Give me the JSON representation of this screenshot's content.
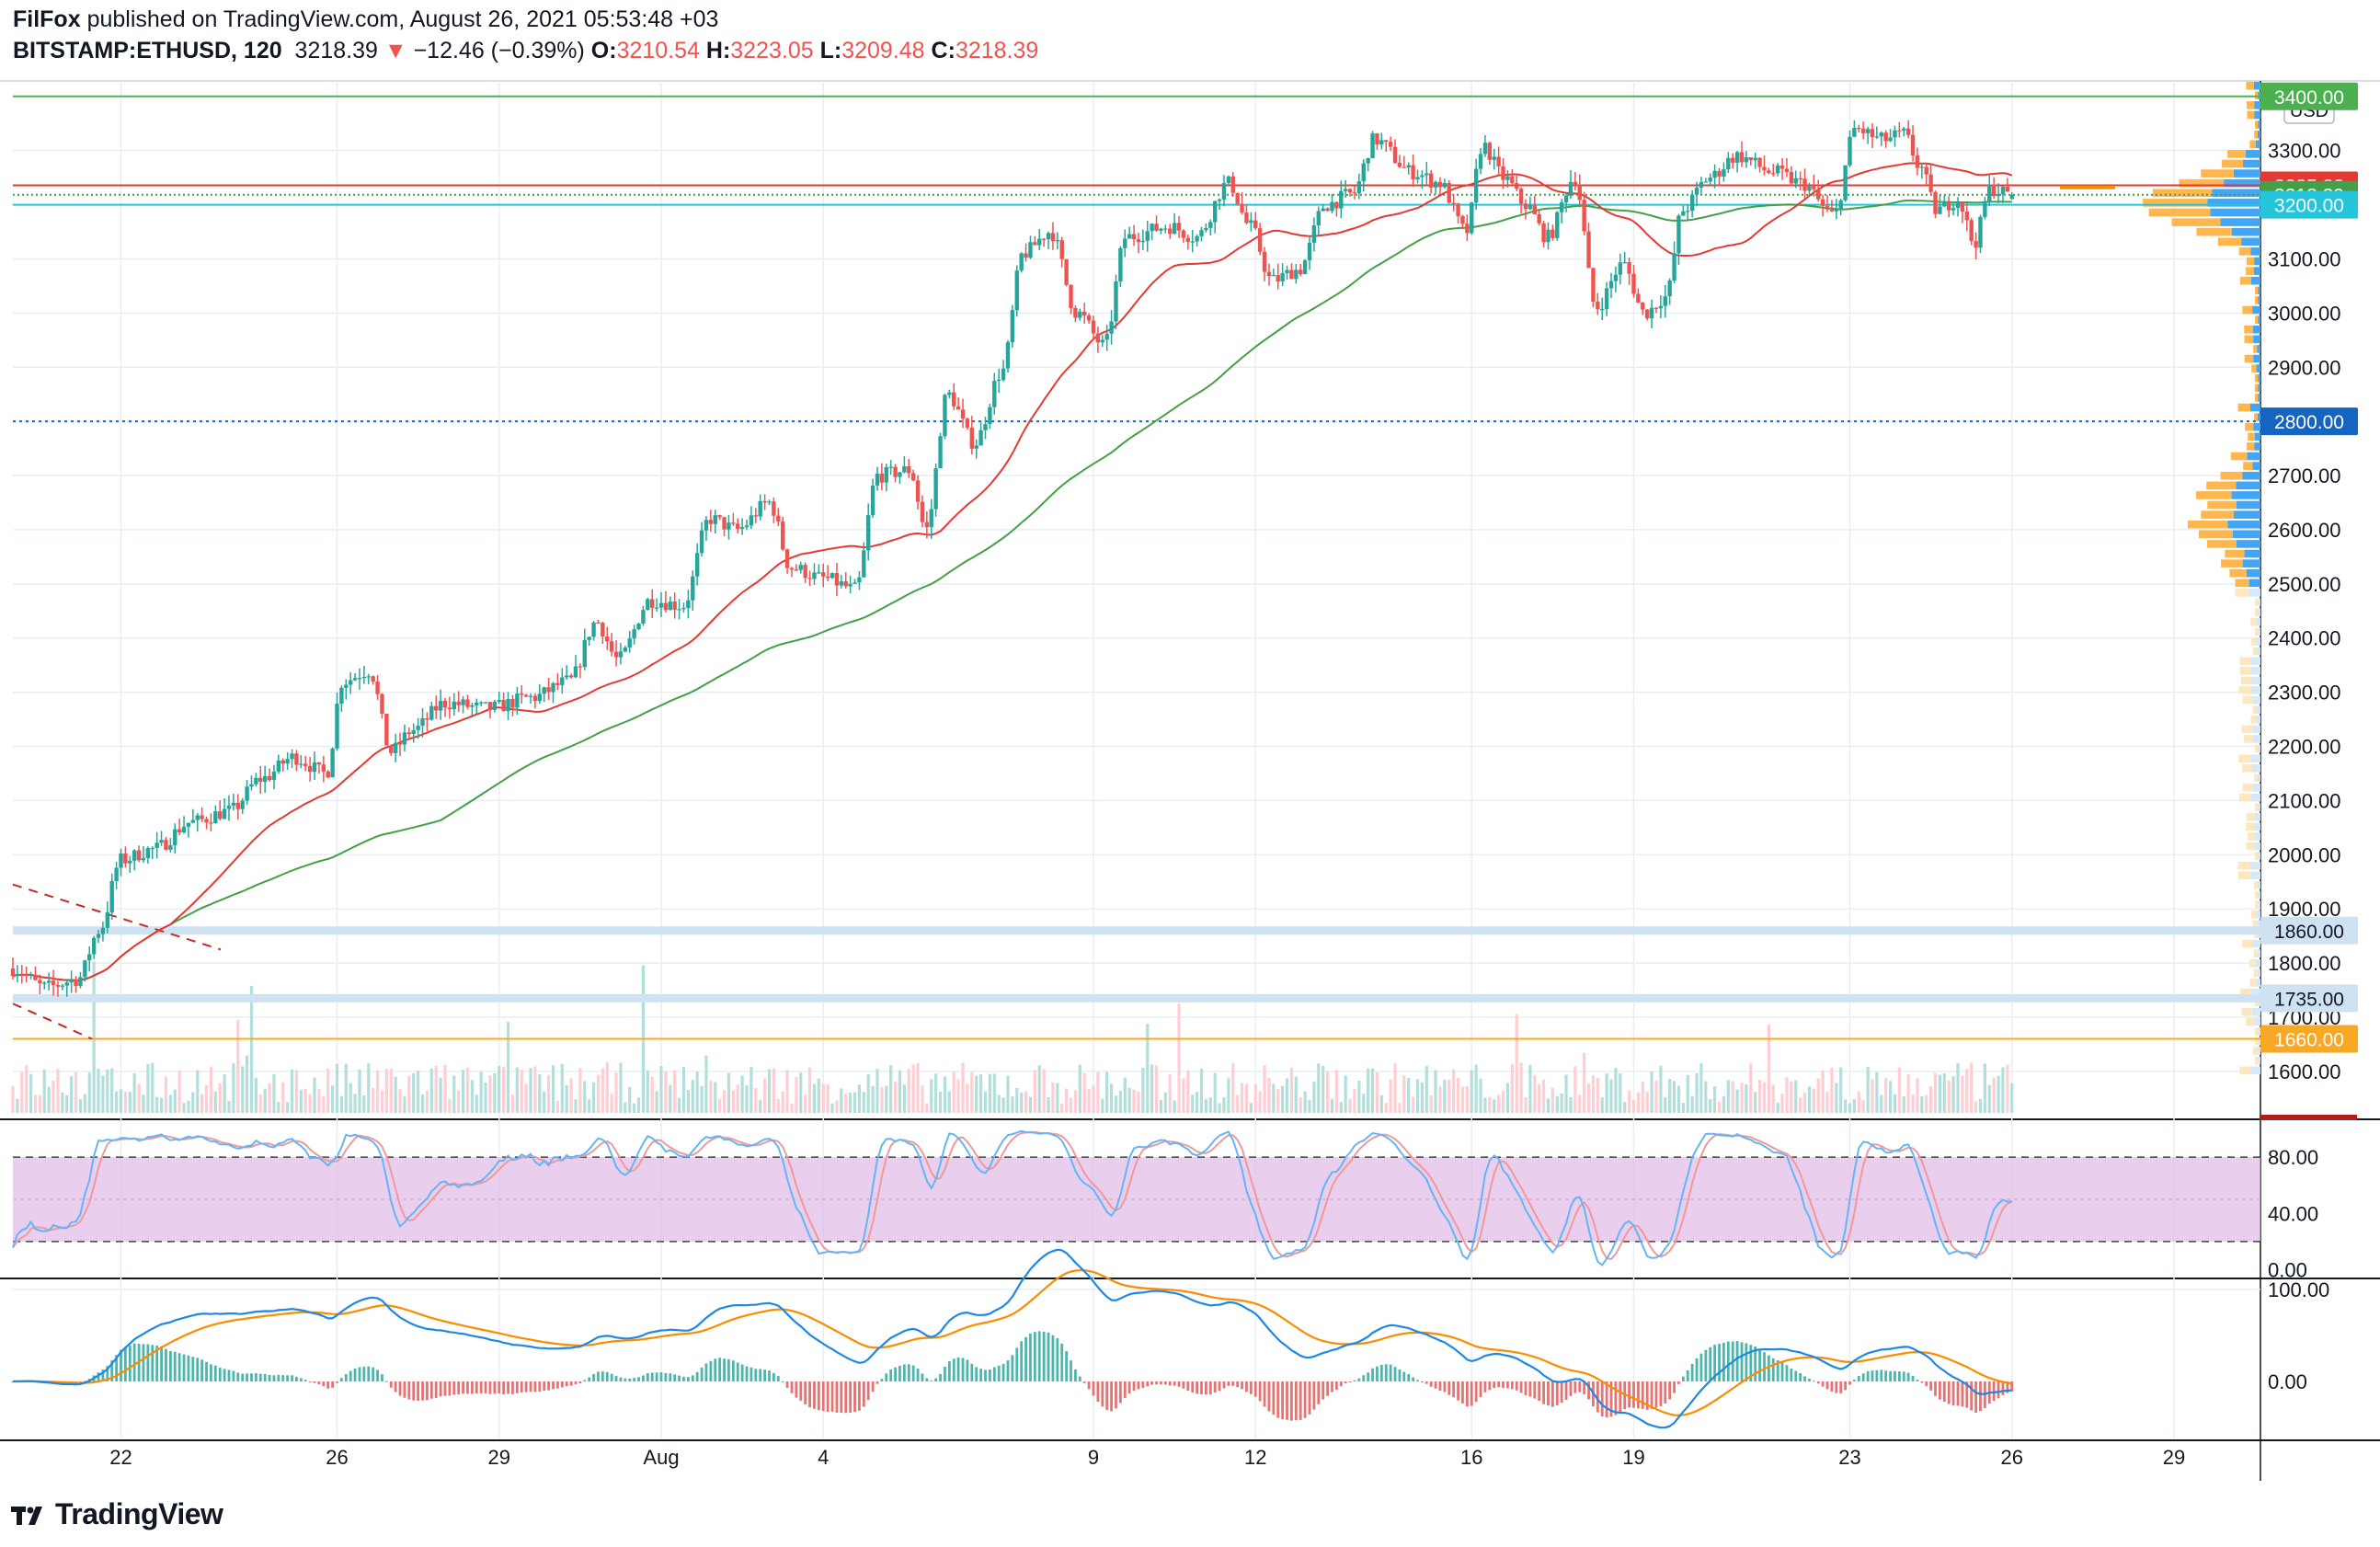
{
  "header": {
    "author": "FilFox",
    "published": "published on TradingView.com, August 26, 2021 05:53:48 +03",
    "symbol": "BITSTAMP:ETHUSD, 120",
    "last": "3218.39",
    "arrow": "▼",
    "change": "−12.46 (−0.39%)",
    "o_label": "O:",
    "o_value": "3210.54",
    "h_label": "H:",
    "h_value": "3223.05",
    "l_label": "L:",
    "l_value": "3209.48",
    "c_label": "C:",
    "c_value": "3218.39"
  },
  "footer": {
    "brand": "TradingView"
  },
  "colors": {
    "up": "#26a69a",
    "down": "#ef5350",
    "sma_slow": "#43a047",
    "sma_fast": "#e53935",
    "vp_buy": "#42a5f5",
    "vp_sell": "#ffb74d",
    "stoch_k": "#64b5f6",
    "stoch_d": "#ef9a9a",
    "stoch_band": "#e1bee7",
    "macd": "#1e88e5",
    "signal": "#fb8c00"
  },
  "chart_data": [
    {
      "type": "candlestick",
      "currency": "USD",
      "ylim": [
        1520,
        3420
      ],
      "y_ticks": [
        "1600.00",
        "1700.00",
        "1800.00",
        "1900.00",
        "2000.00",
        "2100.00",
        "2200.00",
        "2300.00",
        "2400.00",
        "2500.00",
        "2600.00",
        "2700.00",
        "2800.00",
        "2900.00",
        "3000.00",
        "3100.00",
        "3200.00",
        "3300.00",
        "3400.00"
      ],
      "x_ticks": [
        {
          "label": "22",
          "day": 22
        },
        {
          "label": "26",
          "day": 26
        },
        {
          "label": "29",
          "day": 29
        },
        {
          "label": "Aug",
          "day": 32
        },
        {
          "label": "4",
          "day": 35
        },
        {
          "label": "9",
          "day": 40
        },
        {
          "label": "12",
          "day": 43
        },
        {
          "label": "16",
          "day": 47
        },
        {
          "label": "19",
          "day": 50
        },
        {
          "label": "23",
          "day": 54
        },
        {
          "label": "26",
          "day": 57
        },
        {
          "label": "29",
          "day": 60
        }
      ],
      "x_range_days": [
        20.0,
        61.6
      ],
      "last_bar_day": 57.0,
      "anchors": [
        [
          20.0,
          1790
        ],
        [
          20.6,
          1755
        ],
        [
          21.2,
          1770
        ],
        [
          21.6,
          1860
        ],
        [
          22.0,
          1990
        ],
        [
          22.6,
          2010
        ],
        [
          23.3,
          2060
        ],
        [
          24.0,
          2080
        ],
        [
          24.6,
          2140
        ],
        [
          25.2,
          2180
        ],
        [
          25.8,
          2150
        ],
        [
          26.1,
          2320
        ],
        [
          26.6,
          2340
        ],
        [
          27.0,
          2190
        ],
        [
          27.4,
          2230
        ],
        [
          28.0,
          2280
        ],
        [
          28.8,
          2270
        ],
        [
          29.6,
          2290
        ],
        [
          30.3,
          2320
        ],
        [
          30.8,
          2430
        ],
        [
          31.2,
          2360
        ],
        [
          31.8,
          2470
        ],
        [
          32.4,
          2460
        ],
        [
          32.9,
          2620
        ],
        [
          33.4,
          2600
        ],
        [
          34.0,
          2650
        ],
        [
          34.4,
          2530
        ],
        [
          35.0,
          2510
        ],
        [
          35.6,
          2490
        ],
        [
          36.0,
          2700
        ],
        [
          36.6,
          2710
        ],
        [
          36.9,
          2600
        ],
        [
          37.3,
          2850
        ],
        [
          37.8,
          2760
        ],
        [
          38.3,
          2890
        ],
        [
          38.7,
          3110
        ],
        [
          39.2,
          3150
        ],
        [
          39.7,
          3000
        ],
        [
          40.2,
          2940
        ],
        [
          40.6,
          3140
        ],
        [
          41.4,
          3160
        ],
        [
          41.9,
          3140
        ],
        [
          42.5,
          3240
        ],
        [
          42.9,
          3160
        ],
        [
          43.3,
          3060
        ],
        [
          43.8,
          3080
        ],
        [
          44.3,
          3200
        ],
        [
          44.8,
          3220
        ],
        [
          45.2,
          3320
        ],
        [
          45.9,
          3260
        ],
        [
          46.4,
          3240
        ],
        [
          46.9,
          3150
        ],
        [
          47.2,
          3310
        ],
        [
          47.6,
          3250
        ],
        [
          48.0,
          3200
        ],
        [
          48.4,
          3140
        ],
        [
          48.9,
          3250
        ],
        [
          49.3,
          3010
        ],
        [
          49.8,
          3090
        ],
        [
          50.2,
          3000
        ],
        [
          50.6,
          3030
        ],
        [
          50.9,
          3190
        ],
        [
          51.4,
          3250
        ],
        [
          51.9,
          3290
        ],
        [
          52.6,
          3260
        ],
        [
          53.1,
          3240
        ],
        [
          53.7,
          3180
        ],
        [
          54.1,
          3340
        ],
        [
          54.6,
          3320
        ],
        [
          55.0,
          3330
        ],
        [
          55.3,
          3270
        ],
        [
          55.6,
          3190
        ],
        [
          56.0,
          3210
        ],
        [
          56.3,
          3130
        ],
        [
          56.6,
          3230
        ],
        [
          57.0,
          3218
        ]
      ],
      "h_levels": [
        {
          "label": "3400.00",
          "value": 3400,
          "color": "#4caf50"
        },
        {
          "label": "3235.82",
          "value": 3235.82,
          "color": "#e53935"
        },
        {
          "label": "3218.39",
          "value": 3218.39,
          "color": "#43a047"
        },
        {
          "label": "3200.00",
          "value": 3200,
          "color": "#26c6da"
        },
        {
          "label": "2800.00",
          "value": 2800,
          "color": "#1565c0"
        },
        {
          "label": "1860.00",
          "value": 1860,
          "color": "#cfe2f3"
        },
        {
          "label": "1735.00",
          "value": 1735,
          "color": "#cfe2f3"
        },
        {
          "label": "1660.00",
          "value": 1660,
          "color": "#f9a825"
        }
      ]
    },
    {
      "type": "line",
      "panel": "stochastic",
      "ylim": [
        -5,
        105
      ],
      "y_ticks": [
        "0.00",
        "40.00",
        "80.00"
      ],
      "band": [
        20,
        80
      ]
    },
    {
      "type": "line",
      "panel": "macd",
      "ylim": [
        -60,
        110
      ],
      "y_ticks": [
        "0.00",
        "100.00"
      ]
    }
  ]
}
